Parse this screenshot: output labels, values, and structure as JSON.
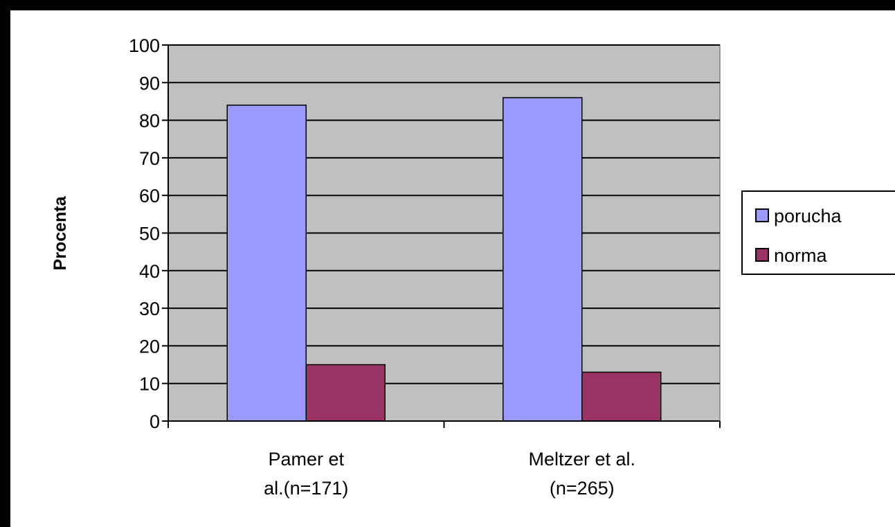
{
  "chart_data": {
    "type": "bar",
    "title": "",
    "xlabel": "",
    "ylabel": "Procenta",
    "ylim": [
      0,
      100
    ],
    "yticks": [
      0,
      10,
      20,
      30,
      40,
      50,
      60,
      70,
      80,
      90,
      100
    ],
    "categories": [
      [
        "Pamer et",
        "al.(n=171)"
      ],
      [
        "Meltzer et al.",
        "(n=265)"
      ]
    ],
    "series": [
      {
        "name": "porucha",
        "values": [
          84,
          86
        ],
        "color": "#9999ff"
      },
      {
        "name": "norma",
        "values": [
          15,
          13
        ],
        "color": "#993366"
      }
    ],
    "plot_background": "#c0c0c0",
    "grid": true,
    "legend_position": "right"
  }
}
